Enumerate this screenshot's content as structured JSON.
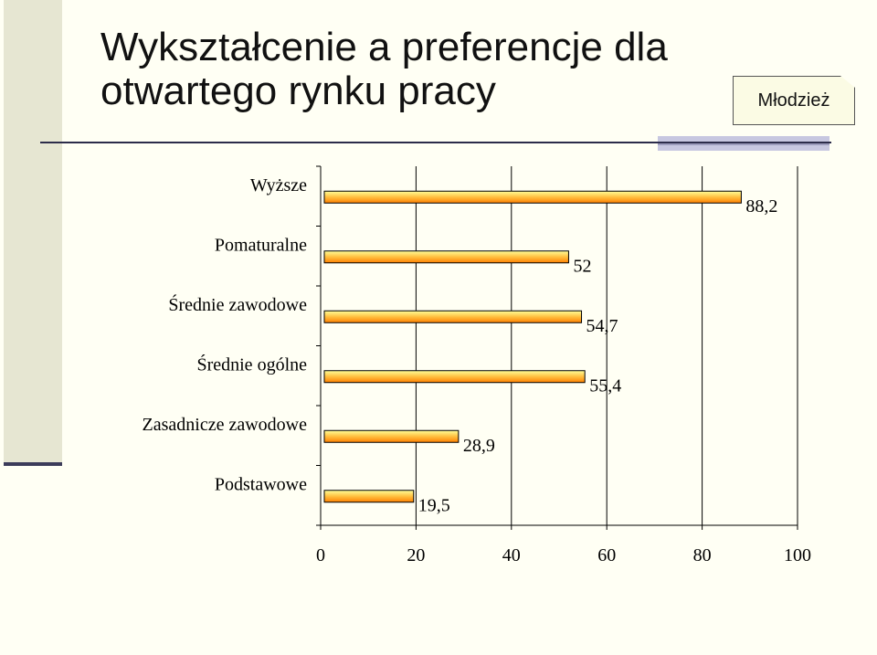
{
  "slide": {
    "title": "Wykształcenie a preferencje dla\notwartego rynku pracy",
    "badge": "Młodzież",
    "accent_color": "#2c2c4a",
    "band_color": "#e6e6d2"
  },
  "chart_data": {
    "type": "bar",
    "orientation": "horizontal",
    "categories": [
      "Wyższe",
      "Pomaturalne",
      "Średnie zawodowe",
      "Średnie ogólne",
      "Zasadnicze zawodowe",
      "Podstawowe"
    ],
    "values": [
      88.2,
      52,
      54.7,
      55.4,
      28.9,
      19.5
    ],
    "value_labels": [
      "88,2",
      "52",
      "54,7",
      "55,4",
      "28,9",
      "19,5"
    ],
    "xlim": [
      0,
      100
    ],
    "xticks": [
      "0",
      "20",
      "40",
      "60",
      "80",
      "100"
    ],
    "xtick_values": [
      0,
      20,
      40,
      60,
      80,
      100
    ],
    "title": "",
    "xlabel": "",
    "ylabel": "",
    "grid": true,
    "bar_color_top": "#ffff99",
    "bar_color_bottom": "#ff8000"
  }
}
